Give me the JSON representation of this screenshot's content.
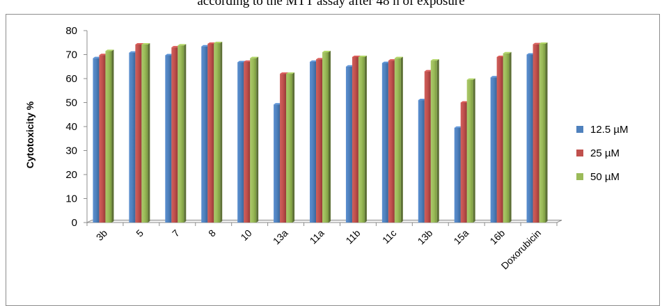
{
  "chart_data": {
    "type": "bar",
    "title": "according to the MTT assay after 48 h of exposure",
    "ylabel": "Cytotoxicity %",
    "xlabel": "",
    "ylim": [
      0,
      80
    ],
    "yticks": [
      0,
      10,
      20,
      30,
      40,
      50,
      60,
      70,
      80
    ],
    "grid": false,
    "legend_position": "right",
    "categories": [
      "3b",
      "5",
      "7",
      "8",
      "10",
      "13a",
      "11a",
      "11b",
      "11c",
      "13b",
      "15a",
      "16b",
      "Doxorubicin"
    ],
    "series": [
      {
        "name": "12.5  µM",
        "color": "#4f81bd",
        "values": [
          68.5,
          70.8,
          69.7,
          73.4,
          66.8,
          49.2,
          67.0,
          65.0,
          66.5,
          51.0,
          39.5,
          60.5,
          70.0
        ]
      },
      {
        "name": "25  µM",
        "color": "#c0504d",
        "values": [
          69.8,
          74.2,
          73.0,
          74.5,
          67.0,
          62.0,
          68.0,
          69.0,
          67.5,
          63.0,
          50.0,
          69.0,
          74.3
        ]
      },
      {
        "name": "50  µM",
        "color": "#9bbb59",
        "values": [
          71.5,
          74.2,
          73.8,
          74.8,
          68.5,
          62.0,
          71.0,
          69.0,
          68.5,
          67.5,
          59.5,
          70.5,
          74.5
        ]
      }
    ]
  }
}
